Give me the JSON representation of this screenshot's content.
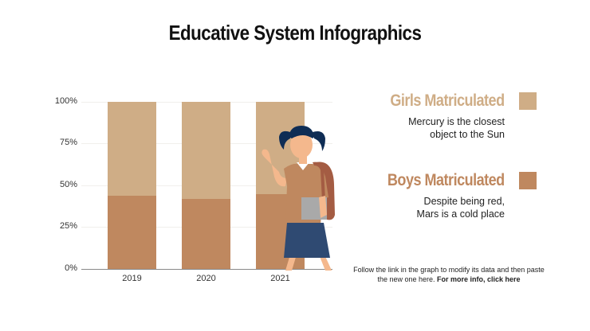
{
  "title": "Educative System Infographics",
  "colors": {
    "girls": "#cfad86",
    "boys": "#bf885f",
    "girls_title": "#cfad86",
    "boys_title": "#bf885f"
  },
  "legend": [
    {
      "title": "Girls Matriculated",
      "description_line1": "Mercury is the closest",
      "description_line2": "object to the Sun"
    },
    {
      "title": "Boys Matriculated",
      "description_line1": "Despite being red,",
      "description_line2": "Mars is a cold place"
    }
  ],
  "footnote": {
    "text": "Follow the link in the graph to modify its data and then paste the new one here.",
    "link": "For more info, click here"
  },
  "chart_data": {
    "type": "bar",
    "stacked": true,
    "normalized": true,
    "title": "",
    "xlabel": "",
    "ylabel": "",
    "categories": [
      "2019",
      "2020",
      "2021"
    ],
    "series": [
      {
        "name": "Boys Matriculated",
        "color": "#bf885f",
        "values": [
          44,
          42,
          45
        ]
      },
      {
        "name": "Girls Matriculated",
        "color": "#cfad86",
        "values": [
          56,
          58,
          55
        ]
      }
    ],
    "yticks": [
      "0%",
      "25%",
      "50%",
      "75%",
      "100%"
    ],
    "ylim": [
      0,
      100
    ],
    "grid": true,
    "legend_position": "right"
  },
  "illustration": "schoolgirl-with-backpack-and-book"
}
